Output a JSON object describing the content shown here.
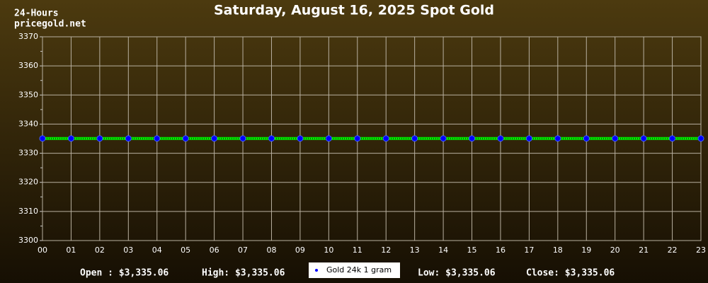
{
  "chart_data": {
    "type": "line",
    "title": "Saturday, August 16, 2025 Spot Gold",
    "corner_labels": [
      "24-Hours",
      "pricegold.net"
    ],
    "categories": [
      "00",
      "01",
      "02",
      "03",
      "04",
      "05",
      "06",
      "07",
      "08",
      "09",
      "10",
      "11",
      "12",
      "13",
      "14",
      "15",
      "16",
      "17",
      "18",
      "19",
      "20",
      "21",
      "22",
      "23"
    ],
    "series": [
      {
        "name": "Gold 24k 1 gram",
        "color": "#00ee00",
        "marker_color": "#0000ff",
        "values": [
          3335.06,
          3335.06,
          3335.06,
          3335.06,
          3335.06,
          3335.06,
          3335.06,
          3335.06,
          3335.06,
          3335.06,
          3335.06,
          3335.06,
          3335.06,
          3335.06,
          3335.06,
          3335.06,
          3335.06,
          3335.06,
          3335.06,
          3335.06,
          3335.06,
          3335.06,
          3335.06,
          3335.06
        ]
      }
    ],
    "ylim": [
      3300,
      3370
    ],
    "yticks": [
      3300,
      3310,
      3320,
      3330,
      3340,
      3350,
      3360,
      3370
    ],
    "yminor_ticks": [
      3305,
      3315,
      3325,
      3335,
      3345,
      3355,
      3365
    ],
    "grid": true,
    "footer": {
      "open": "Open : $3,335.06",
      "high": "High: $3,335.06",
      "low": "Low: $3,335.06",
      "close": "Close: $3,335.06"
    }
  }
}
